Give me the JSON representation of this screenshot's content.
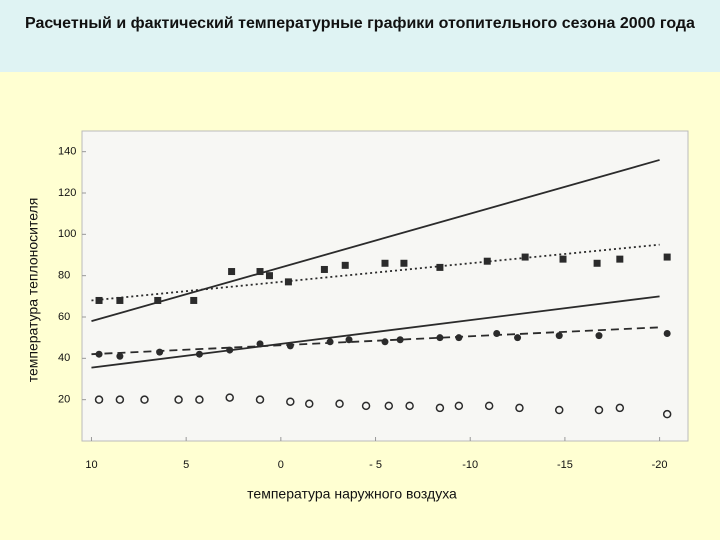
{
  "chart_data": {
    "type": "scatter",
    "title": "Расчетный и фактический температурные графики отопительного сезона 2000 года",
    "x_label": "температура наружного воздуха",
    "y_label": "температура теплоносителя",
    "xlim": [
      10.5,
      -21.5
    ],
    "xticks": [
      10,
      5,
      0,
      {
        "value": -5,
        "label": "- 5"
      },
      -10,
      -15,
      -20
    ],
    "ylim": [
      0,
      150
    ],
    "yticks": [
      20,
      40,
      60,
      80,
      100,
      120,
      140
    ],
    "grid": false,
    "series": [
      {
        "color": "#2b2b2b",
        "style": "solid",
        "marker": "none",
        "x": [
          10,
          -20
        ],
        "values": [
          58,
          136
        ]
      },
      {
        "color": "#2b2b2b",
        "style": "solid",
        "marker": "none",
        "x": [
          10,
          -20
        ],
        "values": [
          35.5,
          70
        ]
      },
      {
        "color": "#2b2b2b",
        "style": "dotted",
        "marker": "none",
        "x": [
          10,
          -20
        ],
        "values": [
          68,
          95
        ]
      },
      {
        "color": "#2b2b2b",
        "style": "dashed",
        "marker": "none",
        "x": [
          10,
          -20
        ],
        "values": [
          42,
          55
        ]
      },
      {
        "color": "#2b2b2b",
        "style": "none",
        "marker": "square",
        "x": [
          9.6,
          8.5,
          6.5,
          4.6,
          2.6,
          1.1,
          0.6,
          -0.4,
          -2.3,
          -3.4,
          -5.5,
          -6.5,
          -8.4,
          -10.9,
          -12.9,
          -14.9,
          -16.7,
          -17.9,
          -20.4
        ],
        "values": [
          68,
          68,
          68,
          68,
          82,
          82,
          80,
          77,
          83,
          85,
          86,
          86,
          84,
          87,
          89,
          88,
          86,
          88,
          89
        ]
      },
      {
        "color": "#2b2b2b",
        "style": "none",
        "marker": "circle",
        "x": [
          9.6,
          8.5,
          6.4,
          4.3,
          2.7,
          1.1,
          -0.5,
          -2.6,
          -3.6,
          -5.5,
          -6.3,
          -8.4,
          -9.4,
          -11.4,
          -12.5,
          -14.7,
          -16.8,
          -20.4
        ],
        "values": [
          42,
          41,
          43,
          42,
          44,
          47,
          46,
          48,
          49,
          48,
          49,
          50,
          50,
          52,
          50,
          51,
          51,
          52
        ]
      },
      {
        "color": "#2b2b2b",
        "style": "none",
        "marker": "open-circle",
        "x": [
          9.6,
          8.5,
          7.2,
          5.4,
          4.3,
          2.7,
          1.1,
          -0.5,
          -1.5,
          -3.1,
          -4.5,
          -5.7,
          -6.8,
          -8.4,
          -9.4,
          -11.0,
          -12.6,
          -14.7,
          -16.8,
          -17.9,
          -20.4
        ],
        "values": [
          20,
          20,
          20,
          20,
          20,
          21,
          20,
          19,
          18,
          18,
          17,
          17,
          17,
          16,
          17,
          17,
          16,
          15,
          15,
          16,
          13
        ]
      }
    ]
  }
}
